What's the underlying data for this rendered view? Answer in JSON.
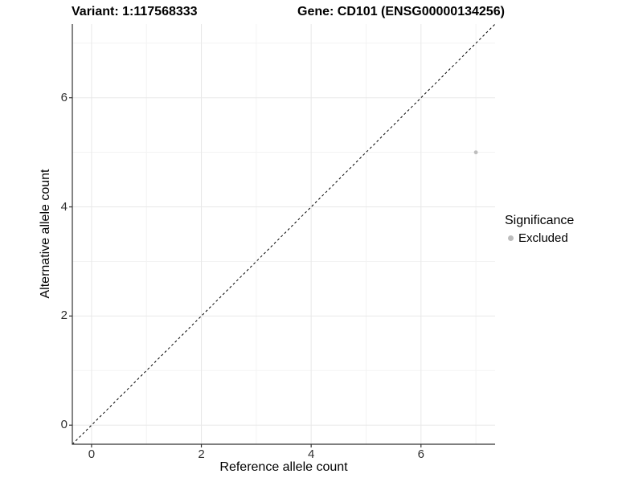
{
  "chart_data": {
    "type": "scatter",
    "title_left": "Variant: 1:117568333",
    "title_right": "Gene: CD101 (ENSG00000134256)",
    "xlabel": "Reference allele count",
    "ylabel": "Alternative allele count",
    "xlim": [
      -0.35,
      7.35
    ],
    "ylim": [
      -0.35,
      7.35
    ],
    "x_major_ticks": [
      0,
      2,
      4,
      6
    ],
    "x_minor_ticks": [
      1,
      3,
      5,
      7
    ],
    "y_major_ticks": [
      0,
      2,
      4,
      6
    ],
    "y_minor_ticks": [
      1,
      3,
      5,
      7
    ],
    "grid": "major+minor",
    "legend_position": "right-middle",
    "series": [
      {
        "name": "Excluded",
        "color": "#bdbdbd",
        "point_radius_px": 2.4,
        "points": [
          {
            "x": 7,
            "y": 5
          }
        ]
      }
    ],
    "reference_line": {
      "kind": "identity y=x",
      "style": "dashed",
      "color": "#000000"
    },
    "legend": {
      "title": "Significance",
      "items": [
        {
          "label": "Excluded",
          "color": "#bdbdbd"
        }
      ]
    }
  },
  "colors": {
    "background": "#ffffff",
    "grid_major": "#e8e8e8",
    "grid_minor": "#f3f3f3",
    "axis_line": "#333333",
    "tick_text": "#303030",
    "title_text": "#000000"
  }
}
